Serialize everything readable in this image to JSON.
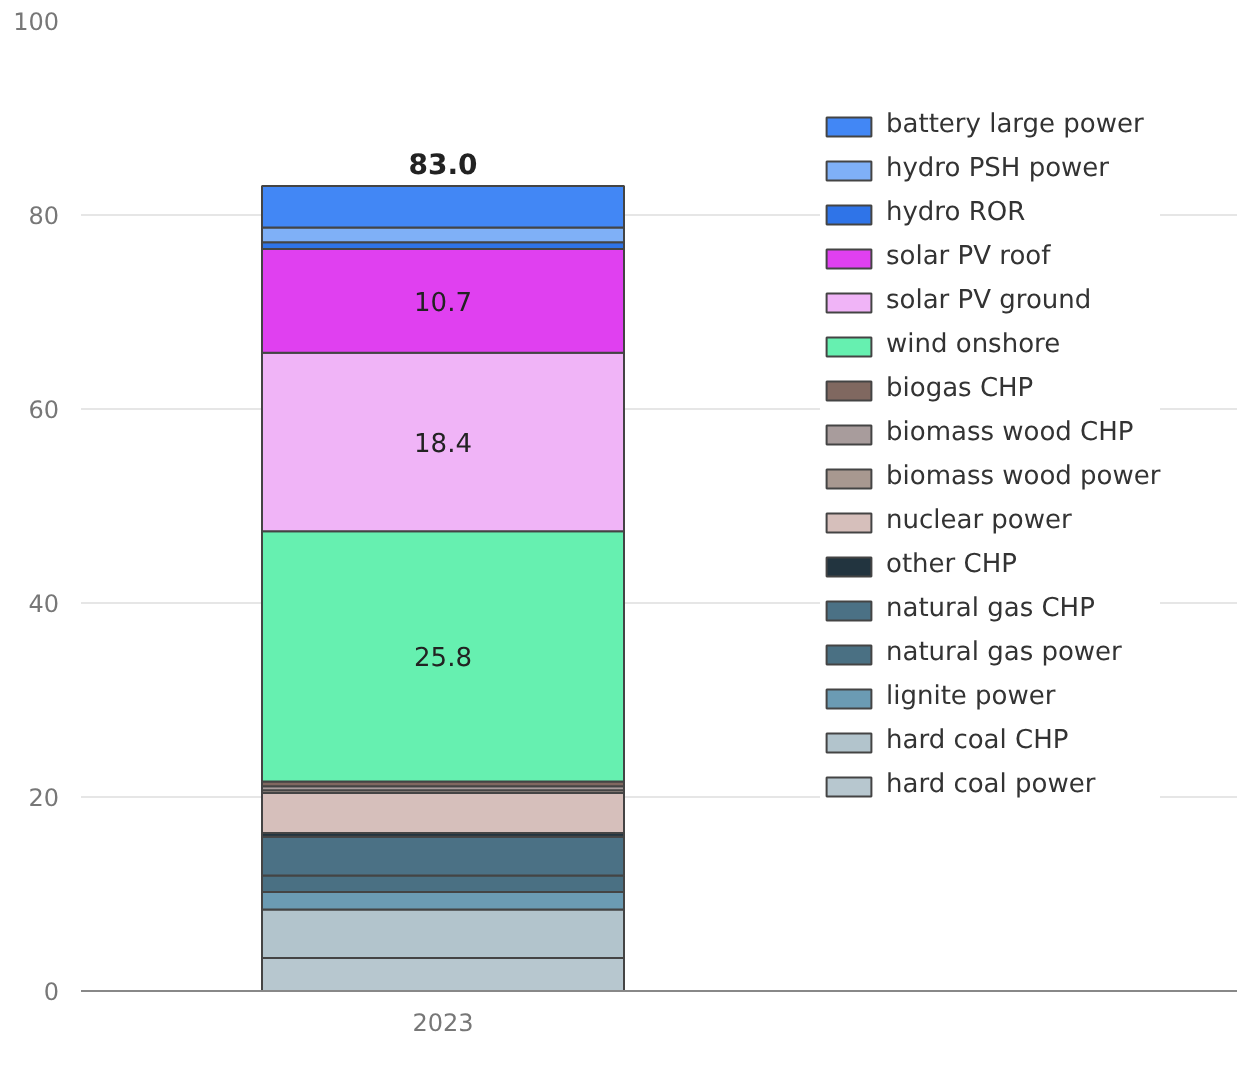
{
  "chart_data": {
    "type": "bar",
    "stacked": true,
    "categories": [
      "2023"
    ],
    "ylim": [
      0,
      100
    ],
    "yticks": [
      0,
      20,
      40,
      60,
      80,
      100
    ],
    "grid": "y",
    "legend": "right",
    "totals": [
      "83.0"
    ],
    "series": [
      {
        "name": "hard coal power",
        "color": "#b7c7cf",
        "values": [
          3.4
        ]
      },
      {
        "name": "hard coal CHP",
        "color": "#b2c4cc",
        "values": [
          5.0
        ]
      },
      {
        "name": "lignite power",
        "color": "#6b9bb3",
        "values": [
          1.8
        ]
      },
      {
        "name": "natural gas power",
        "color": "#4a7083",
        "values": [
          1.7
        ]
      },
      {
        "name": "natural gas CHP",
        "color": "#4b7185",
        "values": [
          4.0
        ]
      },
      {
        "name": "other CHP",
        "color": "#22343f",
        "values": [
          0.4
        ]
      },
      {
        "name": "nuclear power",
        "color": "#d6bfbb",
        "values": [
          4.1
        ]
      },
      {
        "name": "biomass wood power",
        "color": "#a89890",
        "values": [
          0.3
        ]
      },
      {
        "name": "biomass wood CHP",
        "color": "#a89c9c",
        "values": [
          0.4
        ]
      },
      {
        "name": "biogas CHP",
        "color": "#806860",
        "values": [
          0.5
        ]
      },
      {
        "name": "wind onshore",
        "color": "#66f0b0",
        "values": [
          25.8
        ],
        "value_labels": [
          "25.8"
        ]
      },
      {
        "name": "solar PV ground",
        "color": "#f0b4f7",
        "values": [
          18.4
        ],
        "value_labels": [
          "18.4"
        ]
      },
      {
        "name": "solar PV roof",
        "color": "#e040f0",
        "values": [
          10.7
        ],
        "value_labels": [
          "10.7"
        ]
      },
      {
        "name": "hydro ROR",
        "color": "#2f74e8",
        "values": [
          0.7
        ]
      },
      {
        "name": "hydro PSH power",
        "color": "#7fb0f7",
        "values": [
          1.5
        ]
      },
      {
        "name": "battery large power",
        "color": "#4287f5",
        "values": [
          4.3
        ]
      }
    ]
  }
}
